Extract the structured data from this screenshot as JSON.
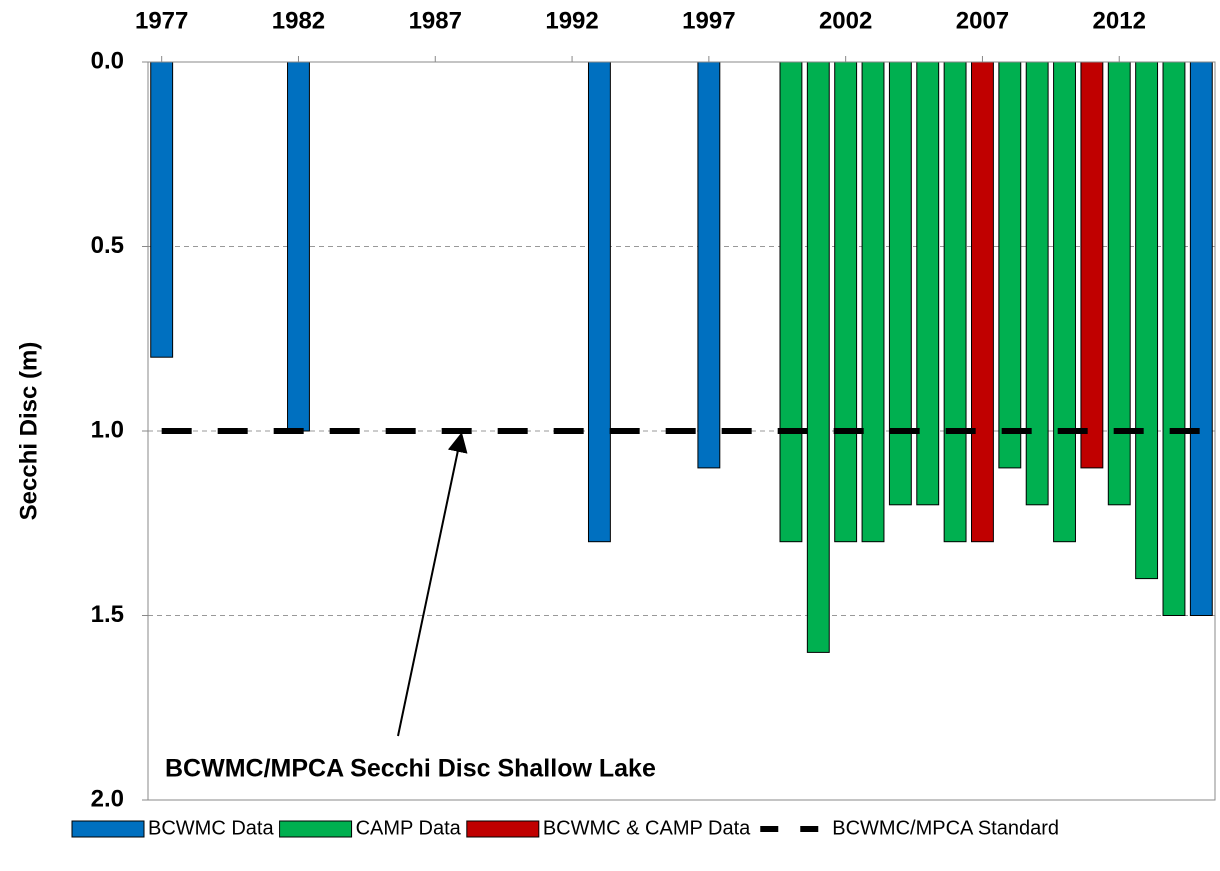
{
  "chart_data": {
    "type": "bar",
    "y_label": "Secchi Disc (m)",
    "annotation": "BCWMC/MPCA Secchi Disc Shallow Lake",
    "xlim": [
      1976.5,
      2015.5
    ],
    "xticks": [
      1977,
      1982,
      1987,
      1992,
      1997,
      2002,
      2007,
      2012
    ],
    "ylim": [
      0,
      2.0
    ],
    "y_inverted": true,
    "yticks": [
      {
        "value": 0,
        "label": "0.0"
      },
      {
        "value": 0.5,
        "label": "0.5"
      },
      {
        "value": 1.0,
        "label": "1.0"
      },
      {
        "value": 1.5,
        "label": "1.5"
      },
      {
        "value": 2.0,
        "label": "2.0"
      }
    ],
    "grid": true,
    "legend": "bottom",
    "series": [
      {
        "name": "BCWMC Data",
        "type": "bar",
        "color": "#0070c0",
        "x": [
          1977,
          1982,
          1993,
          1997,
          2015
        ],
        "values": [
          0.8,
          1.0,
          1.3,
          1.1,
          1.5
        ]
      },
      {
        "name": "CAMP Data",
        "type": "bar",
        "color": "#00b050",
        "x": [
          2000,
          2001,
          2002,
          2003,
          2004,
          2005,
          2006,
          2008,
          2009,
          2010,
          2012,
          2013,
          2014
        ],
        "values": [
          1.3,
          1.6,
          1.3,
          1.3,
          1.2,
          1.2,
          1.3,
          1.1,
          1.2,
          1.3,
          1.2,
          1.4,
          1.5
        ]
      },
      {
        "name": "BCWMC & CAMP Data",
        "type": "bar",
        "color": "#c00000",
        "x": [
          2007,
          2011
        ],
        "values": [
          1.3,
          1.1
        ]
      },
      {
        "name": "BCWMC/MPCA Standard",
        "type": "line",
        "color": "#000000",
        "x": [
          1977,
          2015
        ],
        "values": [
          1.0,
          1.0
        ]
      }
    ]
  }
}
